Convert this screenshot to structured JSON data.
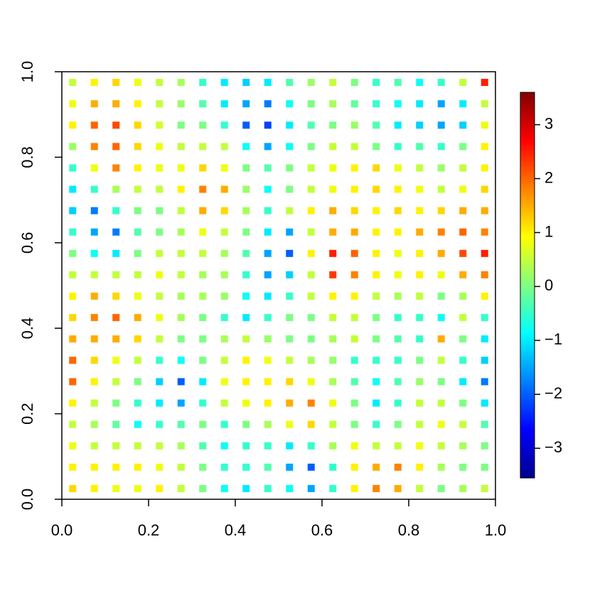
{
  "chart_data": {
    "type": "image",
    "xlim": [
      0,
      1
    ],
    "ylim": [
      0,
      1
    ],
    "xticks": [
      {
        "value": 0,
        "label": "0.0"
      },
      0.2,
      0.4,
      0.6,
      0.8,
      {
        "value": 1,
        "label": "1.0"
      }
    ],
    "yticks": [
      {
        "value": 0,
        "label": "0.0"
      },
      0.2,
      0.4,
      0.6,
      0.8,
      {
        "value": 1,
        "label": "1.0"
      }
    ],
    "zlim": [
      -3.55,
      3.6
    ],
    "zticks": [
      {
        "value": -3,
        "label": "−3"
      },
      {
        "value": -2,
        "label": "−2"
      },
      {
        "value": -1,
        "label": "−1"
      },
      0,
      1,
      2,
      3
    ],
    "colors": [
      "#00008f",
      "#0000ff",
      "#0080ff",
      "#00ffff",
      "#80ff80",
      "#ffff00",
      "#ff8000",
      "#ff0000",
      "#800000"
    ],
    "x": [
      0.025,
      0.075,
      0.125,
      0.175,
      0.225,
      0.275,
      0.325,
      0.375,
      0.425,
      0.475,
      0.525,
      0.575,
      0.625,
      0.675,
      0.725,
      0.775,
      0.825,
      0.875,
      0.925,
      0.975
    ],
    "y": [
      0.975,
      0.925,
      0.875,
      0.825,
      0.775,
      0.725,
      0.675,
      0.625,
      0.575,
      0.525,
      0.475,
      0.425,
      0.375,
      0.325,
      0.275,
      0.225,
      0.175,
      0.125,
      0.075,
      0.025
    ],
    "z": [
      [
        0.5,
        1,
        1.2,
        0.8,
        0.5,
        0.3,
        -0.5,
        -1,
        -1.2,
        -1,
        -0.3,
        0.2,
        0.5,
        0,
        -0.5,
        -0.3,
        -0.8,
        -0.5,
        0.5,
        2.5
      ],
      [
        0.8,
        1.5,
        1.5,
        1,
        0.5,
        0.2,
        -0.3,
        -1,
        -1.5,
        -1.8,
        -0.8,
        0,
        0.3,
        -0.2,
        -0.5,
        -0.8,
        -1,
        -1.5,
        -1,
        0.5
      ],
      [
        1,
        2,
        2.2,
        1.2,
        0.6,
        0,
        0,
        -0.5,
        -2,
        -2.2,
        -1,
        -0.3,
        0,
        0.2,
        -0.3,
        -1,
        -1.2,
        -1.5,
        -1.2,
        0.8
      ],
      [
        0.2,
        1.8,
        2,
        1.2,
        0.8,
        0.5,
        0.5,
        0.5,
        -0.8,
        -1.5,
        -0.8,
        0,
        0.5,
        0.5,
        0,
        -0.5,
        -0.3,
        -0.5,
        0,
        1
      ],
      [
        -0.5,
        0.8,
        1.8,
        1,
        0.8,
        0.8,
        1.2,
        0.8,
        0,
        -0.3,
        0,
        0.5,
        0.8,
        1,
        1.2,
        0.8,
        0.5,
        0.2,
        0.5,
        1
      ],
      [
        -1,
        -0.5,
        0.3,
        0.5,
        0.5,
        1,
        1.8,
        1.5,
        0.2,
        -0.8,
        0,
        0.5,
        0.8,
        1,
        1.2,
        1,
        0.8,
        0.5,
        0.8,
        1.2
      ],
      [
        -1.2,
        -1.8,
        -0.5,
        0,
        0,
        0.5,
        1.5,
        1.2,
        0.3,
        -0.5,
        0.5,
        1,
        1.5,
        1.2,
        1,
        1.2,
        1,
        1.2,
        1.5,
        1.5
      ],
      [
        -0.5,
        -1.5,
        -1.8,
        -0.3,
        0,
        0.3,
        0.8,
        0.5,
        0,
        -1,
        -1.5,
        0.5,
        1.5,
        1.5,
        1,
        1,
        1.5,
        1.8,
        2,
        1.8
      ],
      [
        0,
        -0.8,
        -1,
        0,
        0.5,
        0.5,
        0.5,
        0.3,
        -0.3,
        -1.5,
        -2,
        1,
        2.5,
        2,
        1,
        0.8,
        1,
        1.5,
        2.2,
        2.5
      ],
      [
        0.5,
        0.5,
        0.5,
        0.5,
        0.8,
        0.5,
        0.3,
        0.3,
        -0.5,
        -1.5,
        -1.2,
        0.5,
        2.3,
        1.8,
        1,
        0.8,
        1,
        0.8,
        1.5,
        1.8
      ],
      [
        1,
        1.5,
        1.2,
        0.8,
        0.5,
        0.3,
        0.3,
        0.2,
        -0.8,
        -1,
        -0.5,
        0.5,
        1,
        1,
        0.5,
        0.3,
        0.5,
        0,
        0.3,
        1
      ],
      [
        1.2,
        1.8,
        2,
        1.5,
        0.8,
        0.3,
        0,
        -0.5,
        -1,
        -0.5,
        0,
        0,
        0.5,
        0.5,
        0,
        -0.5,
        -0.5,
        -0.8,
        0.5,
        -0.5
      ],
      [
        1.5,
        1.5,
        1.5,
        1.2,
        0.5,
        0,
        0,
        0.3,
        0.5,
        0.2,
        0,
        0,
        0.3,
        0.5,
        0,
        -0.3,
        -0.5,
        1.5,
        0,
        -1
      ],
      [
        2,
        1.2,
        0.8,
        0.5,
        -0.5,
        -0.8,
        0,
        0.5,
        1,
        0.8,
        0.5,
        0.3,
        0.2,
        -0.5,
        -0.5,
        -0.5,
        0,
        0.5,
        -0.5,
        -1.2
      ],
      [
        2,
        1,
        0.5,
        0,
        -1.2,
        -2,
        -1,
        0.8,
        1,
        1,
        1.2,
        0.8,
        0.3,
        -0.3,
        -0.8,
        -0.3,
        0.2,
        0,
        -1,
        -1.8
      ],
      [
        1,
        0.5,
        0,
        -0.5,
        -1,
        -1.5,
        -0.5,
        0.5,
        0.8,
        1,
        1.5,
        1.8,
        0.8,
        0,
        -1,
        -0.5,
        0.5,
        0.5,
        0,
        -1
      ],
      [
        0.5,
        0.3,
        -0.2,
        -0.8,
        -0.5,
        -0.3,
        0,
        -0.5,
        0,
        0.3,
        0.8,
        1.2,
        0.5,
        0,
        -0.5,
        0,
        0.5,
        0.8,
        0.5,
        -0.3
      ],
      [
        0.8,
        0.5,
        0.5,
        0.5,
        0.5,
        0.3,
        -0.3,
        -0.8,
        -0.5,
        -0.5,
        -1,
        -0.5,
        0.3,
        0.8,
        0.5,
        0.5,
        0.8,
        0.5,
        0.3,
        0
      ],
      [
        1,
        1,
        1,
        1,
        0.8,
        0.5,
        0,
        -0.5,
        -0.5,
        -0.3,
        -1.5,
        -2,
        -0.5,
        1,
        1.5,
        1.8,
        1,
        0.3,
        0,
        0
      ],
      [
        1.2,
        1,
        0.8,
        0.8,
        1,
        0.5,
        0,
        -0.8,
        -1,
        -0.5,
        -0.8,
        -1.5,
        -0.5,
        1,
        1.8,
        1.5,
        0.5,
        0,
        0.3,
        0.5
      ]
    ]
  }
}
